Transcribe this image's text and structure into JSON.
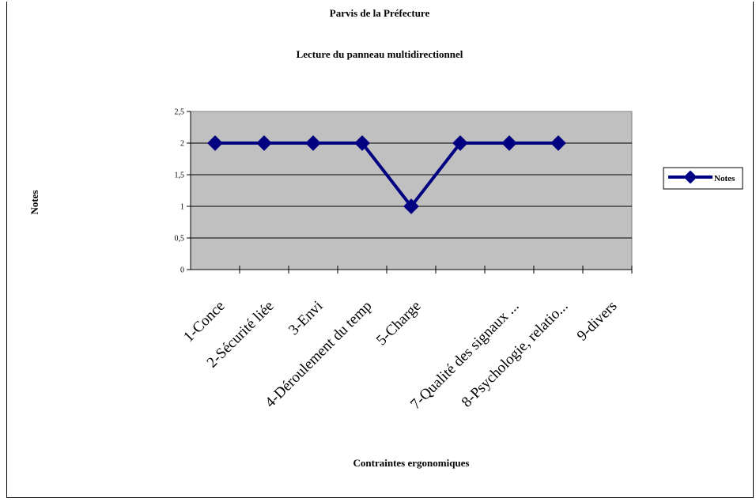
{
  "chart_data": {
    "type": "line",
    "title": "Parvis de la Préfecture",
    "subtitle": "Lecture du panneau multidirectionnel",
    "xlabel": "Contraintes ergonomiques",
    "ylabel": "Notes",
    "categories": [
      "1-Conce",
      "2-Sécurité liée",
      "3-Envi",
      "4-Déroulement du temp",
      "5-Charge",
      "",
      "7-Qualité des signaux ...",
      "8-Psychologie, relatio...",
      "9-divers"
    ],
    "ytick_labels": [
      "0",
      "0,5",
      "1",
      "1,5",
      "2",
      "2,5"
    ],
    "ylim": [
      0,
      2.5
    ],
    "grid": true,
    "legend": "right",
    "series": [
      {
        "name": "Notes",
        "values": [
          2,
          2,
          2,
          2,
          1,
          2,
          2,
          2,
          null
        ]
      }
    ],
    "colors": {
      "line": "#000080",
      "plot_bg": "#c0c0c0"
    }
  }
}
